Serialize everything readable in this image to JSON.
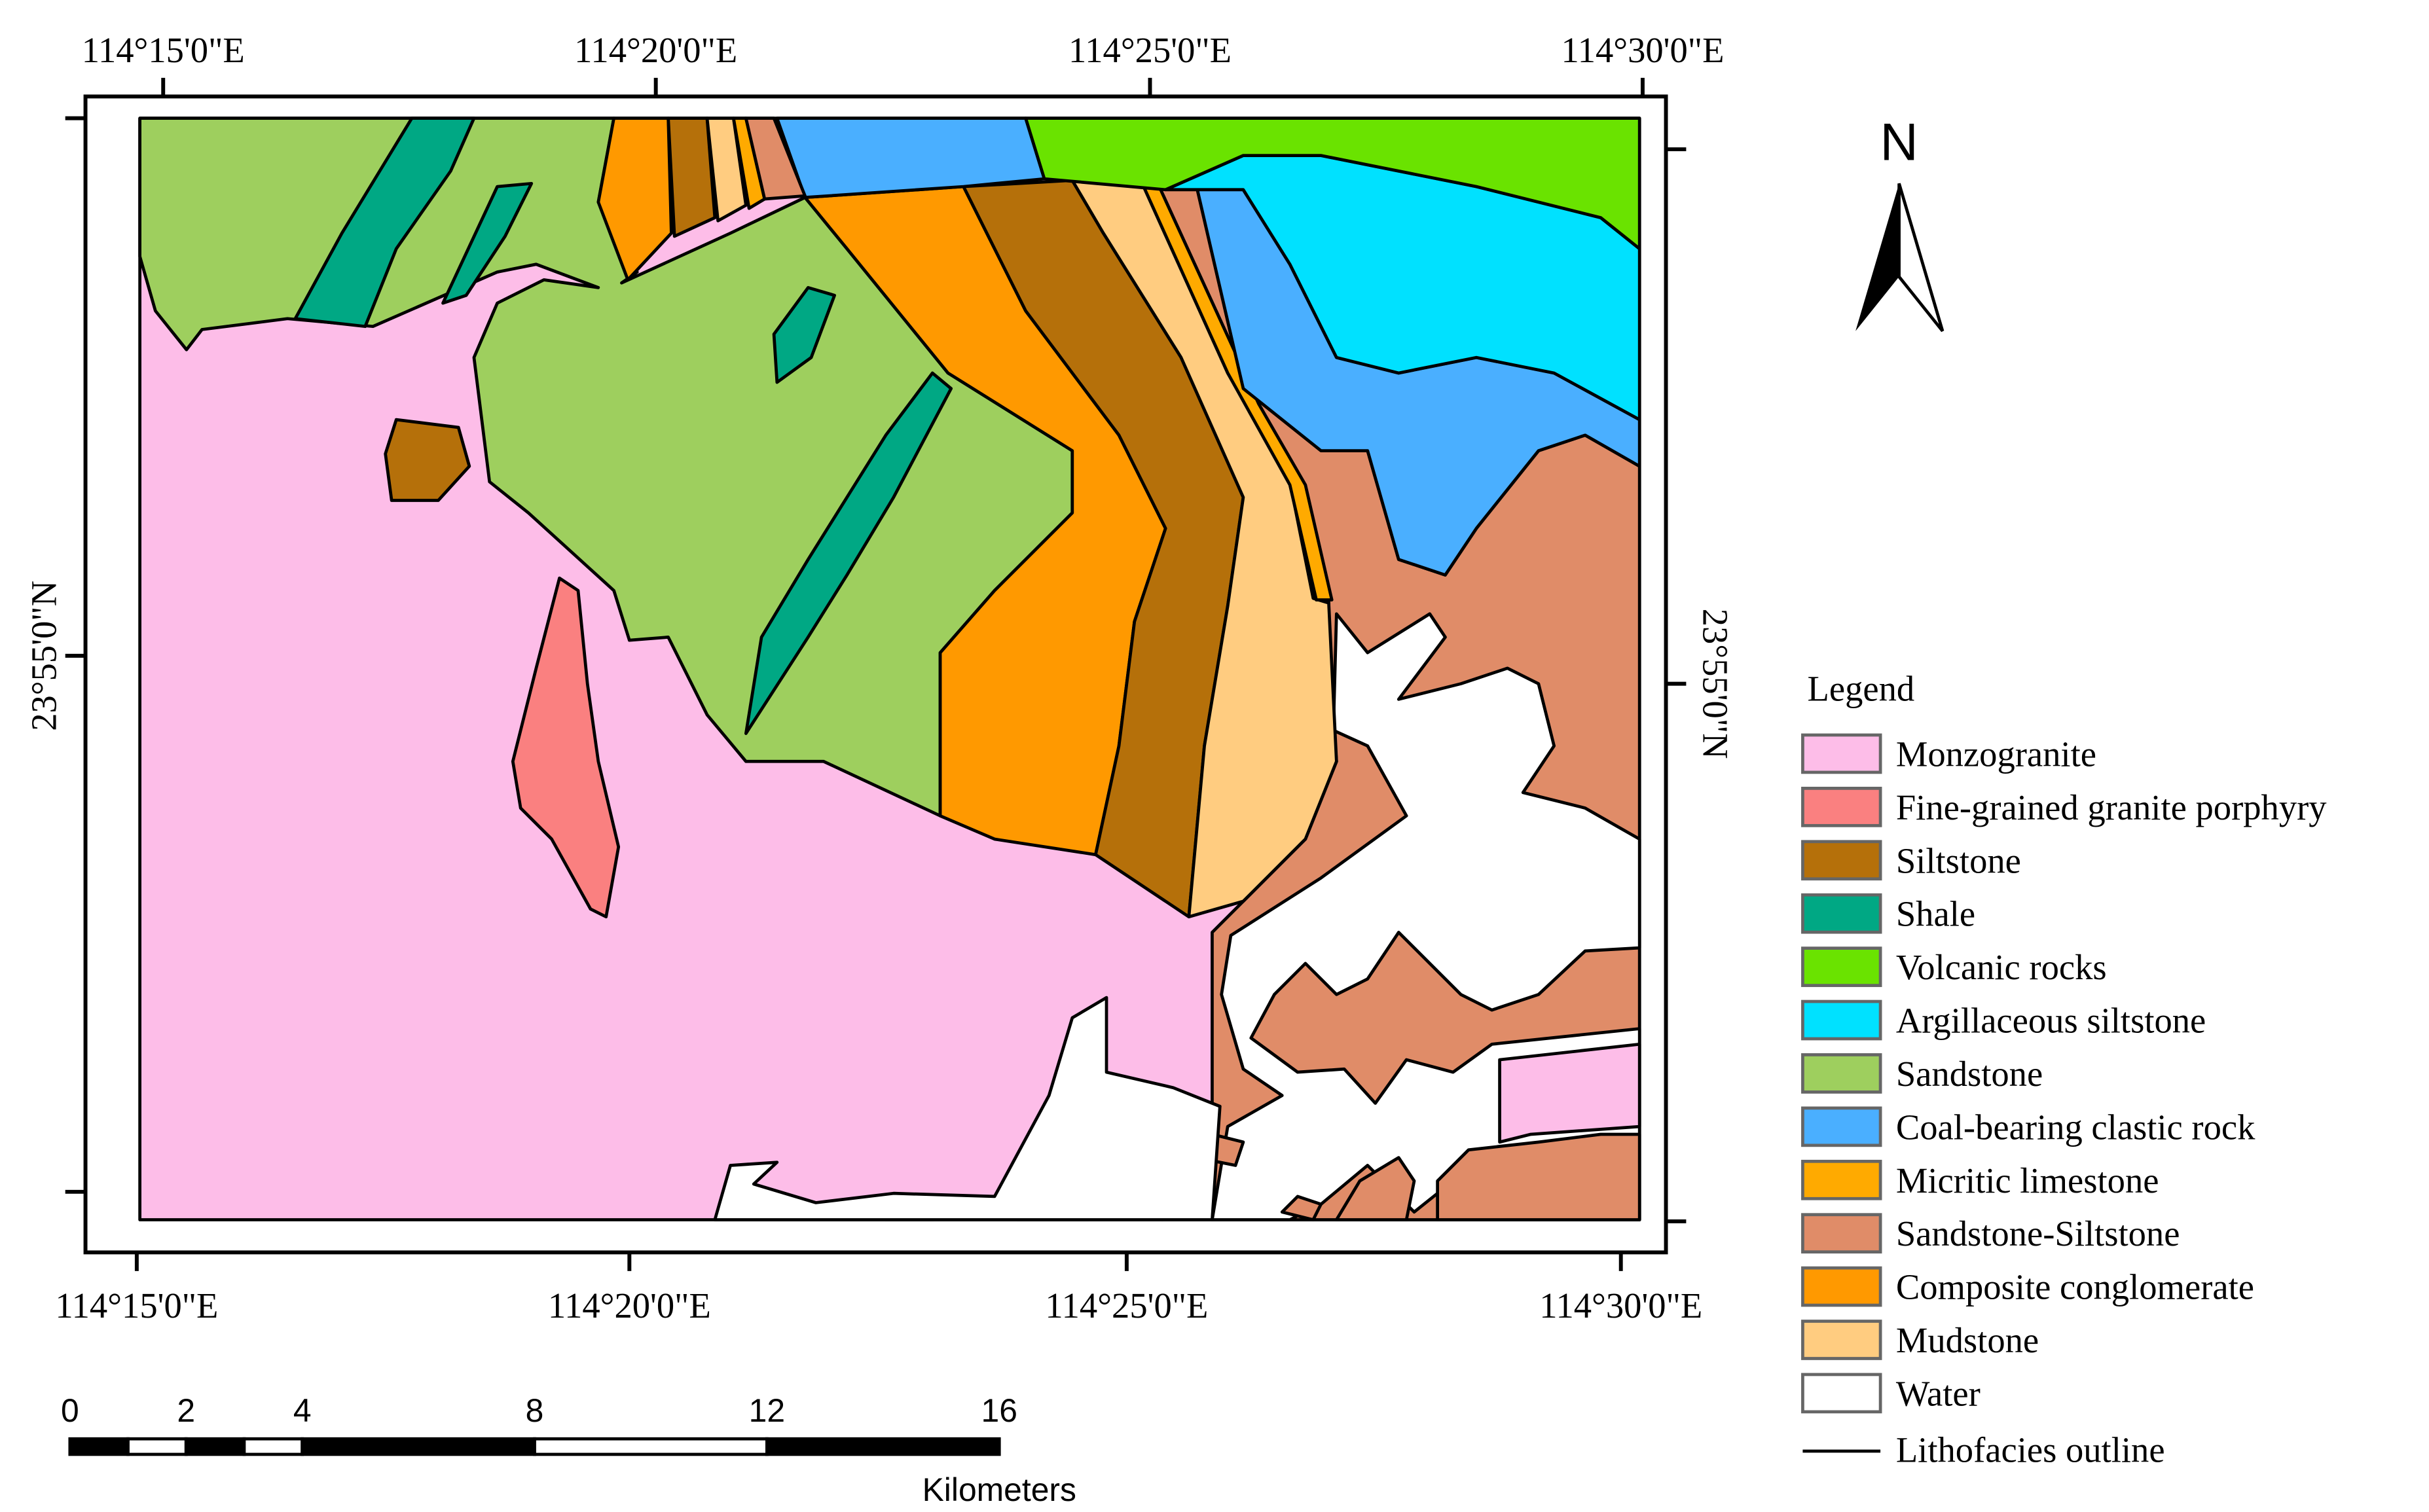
{
  "map": {
    "top_labels": [
      "114°15'0\"E",
      "114°20'0\"E",
      "114°25'0\"E",
      "114°30'0\"E"
    ],
    "bottom_labels": [
      "114°15'0\"E",
      "114°20'0\"E",
      "114°25'0\"E",
      "114°30'0\"E"
    ],
    "left_label": "23°55'0\"N",
    "right_label": "23°55'0\"N"
  },
  "north_arrow": "N",
  "legend": {
    "title": "Legend",
    "items": [
      {
        "name": "Monzogranite",
        "color": "#fdbde8"
      },
      {
        "name": "Fine-grained granite porphyry",
        "color": "#fa8080"
      },
      {
        "name": "Siltstone",
        "color": "#b5700a"
      },
      {
        "name": "Shale",
        "color": "#00a884"
      },
      {
        "name": "Volcanic rocks",
        "color": "#6ae300"
      },
      {
        "name": "Argillaceous siltstone",
        "color": "#00e1ff"
      },
      {
        "name": "Sandstone",
        "color": "#9ecf5e"
      },
      {
        "name": "Coal-bearing clastic rock",
        "color": "#4aafff"
      },
      {
        "name": "Micritic limestone",
        "color": "#ffaa00"
      },
      {
        "name": "Sandstone-Siltstone",
        "color": "#e08c68"
      },
      {
        "name": "Composite conglomerate",
        "color": "#ff9900"
      },
      {
        "name": "Mudstone",
        "color": "#ffcc80"
      },
      {
        "name": "Water",
        "color": "#ffffff"
      }
    ],
    "outline": "Lithofacies outline"
  },
  "scale_bar": {
    "ticks": [
      0,
      2,
      4,
      8,
      12,
      16
    ],
    "unit": "Kilometers"
  }
}
